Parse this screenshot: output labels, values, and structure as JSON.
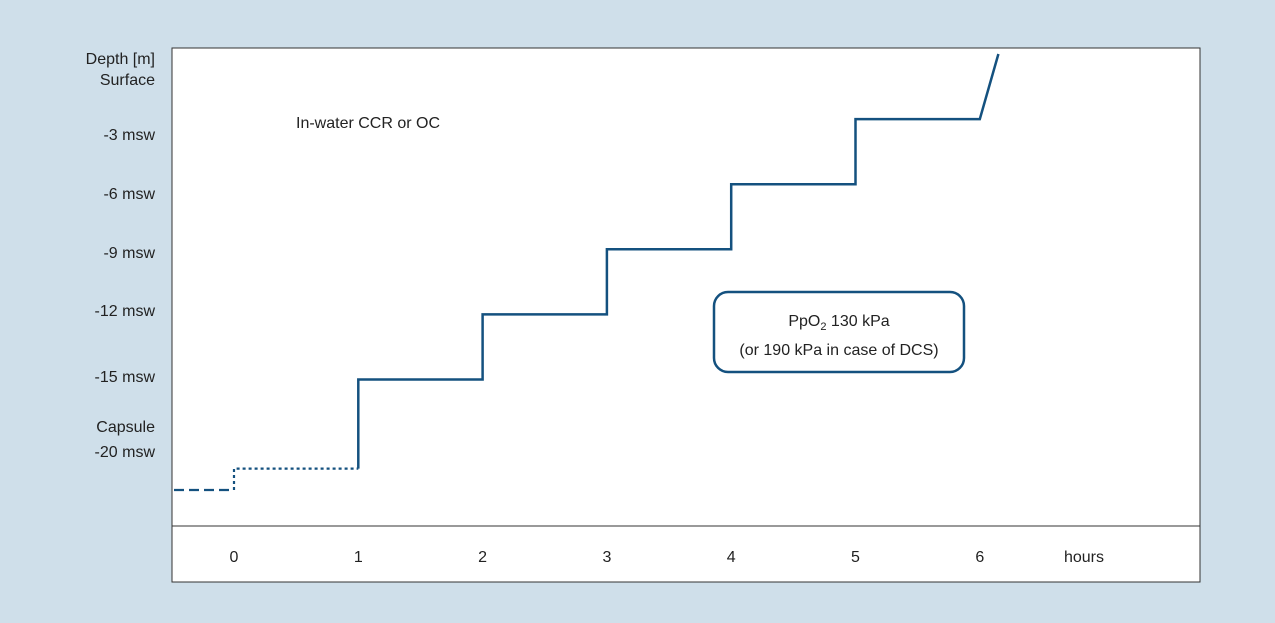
{
  "chart_data": {
    "type": "line",
    "title": "",
    "annotation": "In-water CCR or OC",
    "ylabel": "Depth [m]",
    "xlabel": "hours",
    "xlim": [
      0,
      6
    ],
    "ylim": [
      -20,
      0
    ],
    "x_ticks": [
      "0",
      "1",
      "2",
      "3",
      "4",
      "5",
      "6"
    ],
    "y_ticks": [
      {
        "value": 0,
        "label": "Surface"
      },
      {
        "value": -3,
        "label": "-3 msw"
      },
      {
        "value": -6,
        "label": "-6 msw"
      },
      {
        "value": -9,
        "label": "-9 msw"
      },
      {
        "value": -12,
        "label": "-12 msw"
      },
      {
        "value": -15,
        "label": "-15 msw"
      },
      {
        "value": -20,
        "label": "-20 msw"
      }
    ],
    "capsule_label": "Capsule",
    "callout": {
      "line1": "PpO",
      "subscript": "2",
      "line1_rest": " 130 kPa",
      "line2": "(or 190 kPa in case of DCS)"
    },
    "series": [
      {
        "style": "dashed",
        "points": [
          [
            -0.5,
            -20
          ],
          [
            0,
            -20
          ]
        ]
      },
      {
        "style": "dotted",
        "points": [
          [
            0,
            -20
          ],
          [
            0,
            -19
          ],
          [
            1,
            -19
          ]
        ]
      },
      {
        "style": "solid",
        "points": [
          [
            1,
            -19
          ],
          [
            1,
            -15
          ],
          [
            2,
            -15
          ],
          [
            2,
            -12
          ],
          [
            3,
            -12
          ],
          [
            3,
            -9
          ],
          [
            4,
            -9
          ],
          [
            4,
            -6
          ],
          [
            5,
            -6
          ],
          [
            5,
            -3
          ],
          [
            6,
            -3
          ],
          [
            6.15,
            0
          ]
        ]
      }
    ],
    "colors": {
      "line": "#14517f",
      "background": "#cfdfea",
      "plot": "#ffffff"
    }
  }
}
